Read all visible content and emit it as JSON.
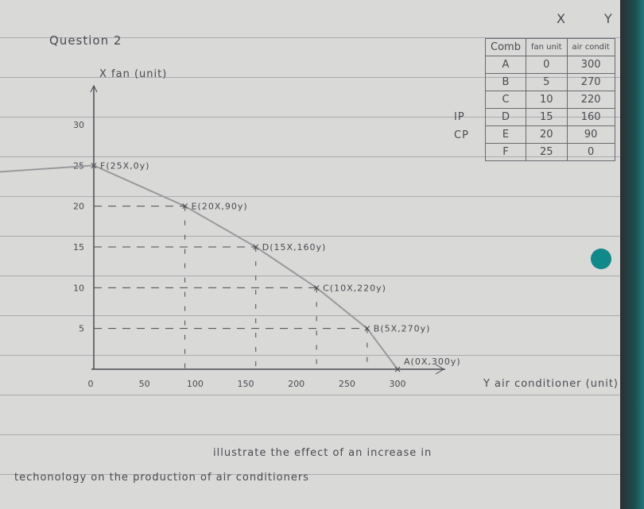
{
  "question": "Question 2",
  "table": {
    "axis_labels": [
      "X",
      "Y"
    ],
    "headers": [
      "Comb",
      "fan unit",
      "air condit"
    ],
    "side_labels": {
      "D": "IP",
      "E": "CP"
    },
    "rows": [
      [
        "A",
        "0",
        "300"
      ],
      [
        "B",
        "5",
        "270"
      ],
      [
        "C",
        "10",
        "220"
      ],
      [
        "D",
        "15",
        "160"
      ],
      [
        "E",
        "20",
        "90"
      ],
      [
        "F",
        "25",
        "0"
      ]
    ]
  },
  "instruction_line1": "illustrate the effect of an increase in",
  "instruction_line2": "techonology on the production of air conditioners",
  "chart_data": {
    "type": "line",
    "xlabel": "Y air conditioner (unit)",
    "ylabel": "X fan (unit)",
    "xlim": [
      0,
      300
    ],
    "ylim": [
      0,
      30
    ],
    "x_ticks": [
      "0",
      "50",
      "100",
      "150",
      "200",
      "250",
      "300"
    ],
    "y_ticks": [
      "5",
      "10",
      "15",
      "20",
      "25",
      "30"
    ],
    "points": [
      {
        "label": "A(0X,300y)",
        "x": 300,
        "y": 0
      },
      {
        "label": "B(5X,270y)",
        "x": 270,
        "y": 5
      },
      {
        "label": "C(10X,220y)",
        "x": 220,
        "y": 10
      },
      {
        "label": "D(15X,160y)",
        "x": 160,
        "y": 15
      },
      {
        "label": "E(20X,90y)",
        "x": 90,
        "y": 20
      },
      {
        "label": "F(25X,0y)",
        "x": 0,
        "y": 25
      }
    ],
    "grid": false
  },
  "colors": {
    "ink": "#4a4a52",
    "curve": "#9a9a9e",
    "dot": "#10898a"
  }
}
